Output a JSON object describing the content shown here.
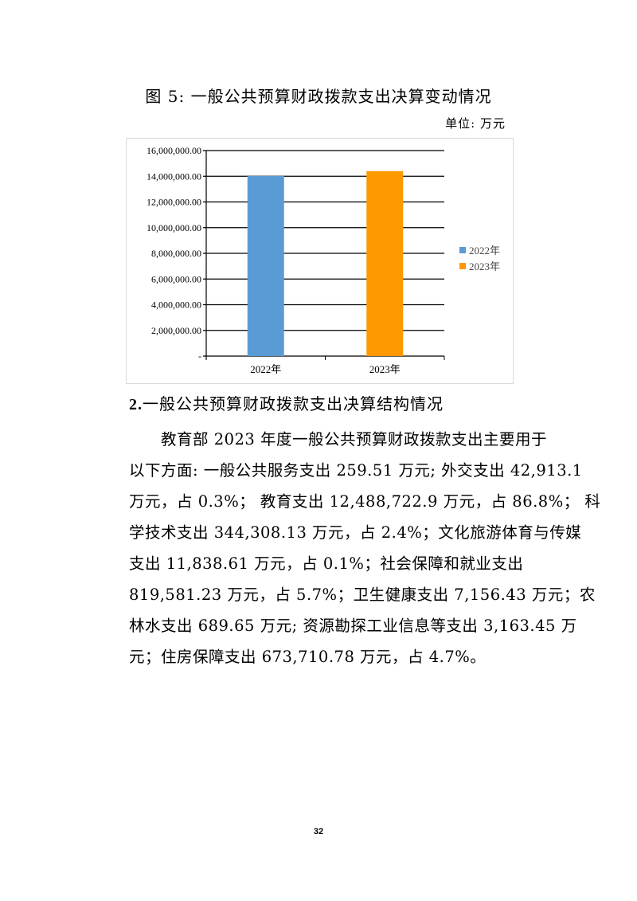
{
  "title": "图 5:  一般公共预算财政拨款支出决算变动情况",
  "unit": "单位:  万元",
  "chart_data": {
    "type": "bar",
    "categories": [
      "2022年",
      "2023年"
    ],
    "series": [
      {
        "name": "2022年",
        "category": "2022年",
        "value": 14020000,
        "color": "#5b9bd5"
      },
      {
        "name": "2023年",
        "category": "2023年",
        "value": 14400000,
        "color": "#ff9900"
      }
    ],
    "yticks": [
      "-",
      "2,000,000.00",
      "4,000,000.00",
      "6,000,000.00",
      "8,000,000.00",
      "10,000,000.00",
      "12,000,000.00",
      "14,000,000.00",
      "16,000,000.00"
    ],
    "ylim": [
      0,
      16000000
    ],
    "grid": true,
    "legend": "right"
  },
  "section": {
    "number": "2.",
    "heading": "一般公共预算财政拨款支出决算结构情况"
  },
  "paragraph_lines": [
    "教育部 2023 年度一般公共预算财政拨款支出主要用于",
    "以下方面: 一般公共服务支出 259.51 万元; 外交支出 42,913.1",
    "万元，占 0.3%； 教育支出 12,488,722.9 万元，占 86.8%； 科",
    "学技术支出 344,308.13 万元，占 2.4%；文化旅游体育与传媒",
    "支出 11,838.61 万元，占 0.1%；社会保障和就业支出",
    "819,581.23 万元，占 5.7%；卫生健康支出 7,156.43 万元；农",
    "林水支出 689.65 万元; 资源勘探工业信息等支出 3,163.45 万",
    "元；住房保障支出 673,710.78 万元，占 4.7%。"
  ],
  "page_number": "32"
}
